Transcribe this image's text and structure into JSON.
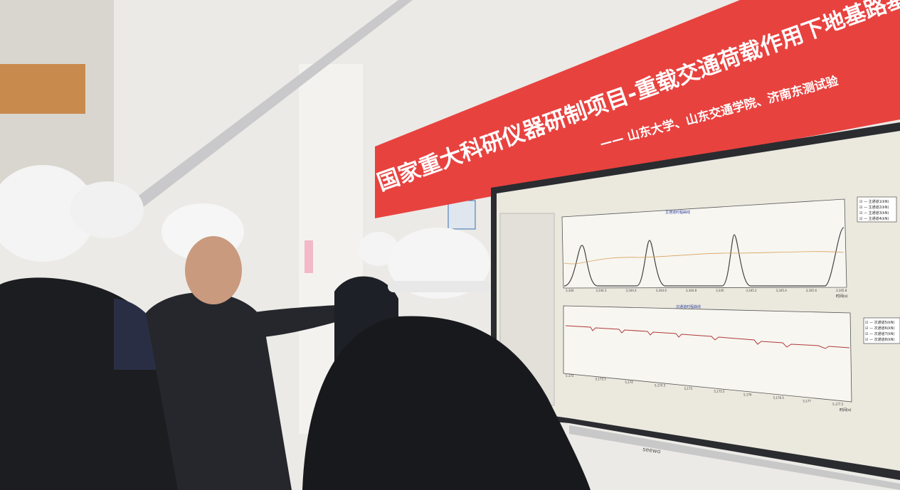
{
  "banner": {
    "title": "国家重大科研仪器研制项目-重载交通荷载作用下地基路基累积变",
    "subtitle": "—— 山东大学、山东交通学院、济南东测试验",
    "color": "#e8423f"
  },
  "monitor": {
    "brand": "seewo",
    "top_chart": {
      "title": "主通道时程曲线",
      "xlabel": "时间(s)",
      "ticks": [
        "3,344",
        "3,344.2",
        "3,344.4",
        "3,344.6",
        "3,344.8",
        "3,345",
        "3,345.2",
        "3,345.4",
        "3,345.6",
        "3,345.8"
      ],
      "legend": [
        "主通道1(kN)",
        "主通道2(kN)",
        "主通道3(kN)",
        "主通道4(kN)"
      ]
    },
    "bottom_chart": {
      "title": "次通道时程曲线",
      "xlabel": "时间(s)",
      "ticks": [
        "5,173",
        "5,173.5",
        "5,174",
        "5,174.5",
        "5,175",
        "5,175.5",
        "5,176",
        "5,176.5",
        "5,177",
        "5,177.5"
      ],
      "legend": [
        "次通道5(kN)",
        "次通道6(kN)",
        "次通道7(kN)",
        "次通道8(kN)"
      ]
    }
  }
}
